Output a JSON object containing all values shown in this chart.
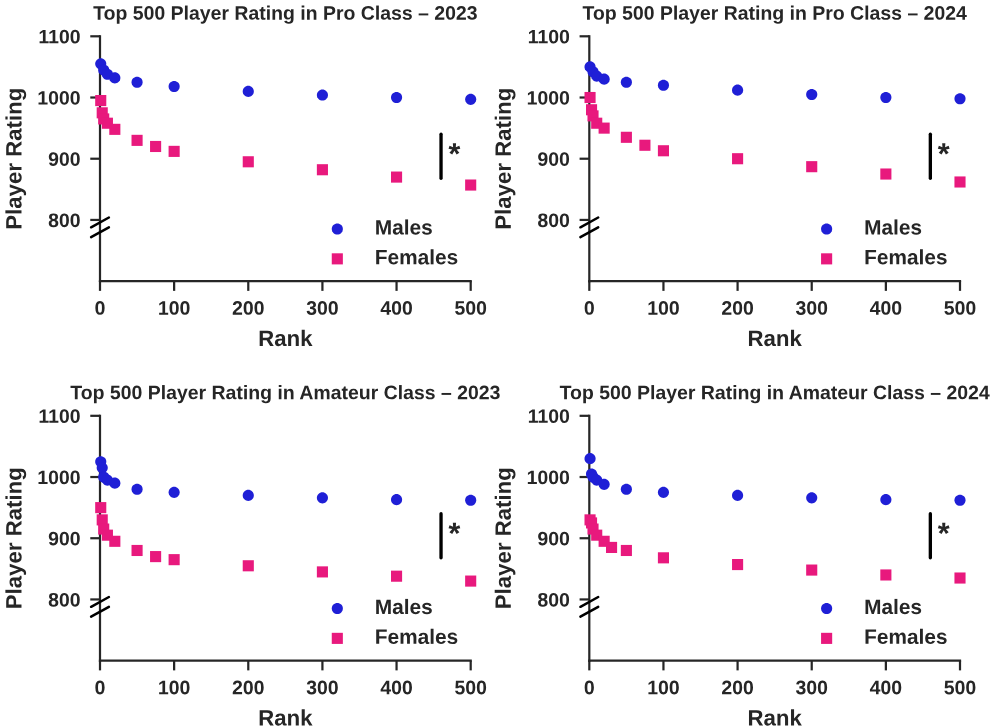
{
  "chart_data": [
    {
      "type": "scatter",
      "title": "Top 500 Player Rating in Pro Class – 2023",
      "xlabel": "Rank",
      "ylabel": "Player Rating",
      "xlim": [
        0,
        500
      ],
      "xticks": [
        0,
        100,
        200,
        300,
        400,
        500
      ],
      "ylim": [
        700,
        1100
      ],
      "yticks": [
        800,
        900,
        1000,
        1100
      ],
      "grid": false,
      "legend": "bottom right",
      "annotations": [
        "*"
      ],
      "series": [
        {
          "name": "Males",
          "color": "#1f1fd6",
          "marker": "circle",
          "x": [
            1,
            5,
            10,
            20,
            50,
            100,
            200,
            300,
            400,
            500
          ],
          "values": [
            1055,
            1045,
            1038,
            1032,
            1025,
            1018,
            1010,
            1004,
            1000,
            997
          ]
        },
        {
          "name": "Females",
          "color": "#e8197d",
          "marker": "square",
          "x": [
            1,
            3,
            5,
            10,
            20,
            50,
            75,
            100,
            200,
            300,
            400,
            500
          ],
          "values": [
            995,
            975,
            965,
            958,
            948,
            930,
            920,
            912,
            895,
            882,
            870,
            857
          ]
        }
      ]
    },
    {
      "type": "scatter",
      "title": "Top 500 Player Rating in Pro Class – 2024",
      "xlabel": "Rank",
      "ylabel": "Player Rating",
      "xlim": [
        0,
        500
      ],
      "xticks": [
        0,
        100,
        200,
        300,
        400,
        500
      ],
      "ylim": [
        700,
        1100
      ],
      "yticks": [
        800,
        900,
        1000,
        1100
      ],
      "grid": false,
      "legend": "bottom right",
      "annotations": [
        "*"
      ],
      "series": [
        {
          "name": "Males",
          "color": "#1f1fd6",
          "marker": "circle",
          "x": [
            1,
            5,
            10,
            20,
            50,
            100,
            200,
            300,
            400,
            500
          ],
          "values": [
            1050,
            1042,
            1035,
            1030,
            1025,
            1020,
            1012,
            1005,
            1000,
            998
          ]
        },
        {
          "name": "Females",
          "color": "#e8197d",
          "marker": "square",
          "x": [
            1,
            3,
            5,
            10,
            20,
            50,
            75,
            100,
            200,
            300,
            400,
            500
          ],
          "values": [
            1000,
            980,
            970,
            958,
            950,
            935,
            922,
            913,
            900,
            887,
            875,
            862
          ]
        }
      ]
    },
    {
      "type": "scatter",
      "title": "Top 500 Player Rating in Amateur Class – 2023",
      "xlabel": "Rank",
      "ylabel": "Player Rating",
      "xlim": [
        0,
        500
      ],
      "xticks": [
        0,
        100,
        200,
        300,
        400,
        500
      ],
      "ylim": [
        700,
        1100
      ],
      "yticks": [
        800,
        900,
        1000,
        1100
      ],
      "grid": false,
      "legend": "bottom right",
      "annotations": [
        "*"
      ],
      "series": [
        {
          "name": "Males",
          "color": "#1f1fd6",
          "marker": "circle",
          "x": [
            1,
            3,
            5,
            10,
            20,
            50,
            100,
            200,
            300,
            400,
            500
          ],
          "values": [
            1025,
            1015,
            1000,
            995,
            990,
            980,
            975,
            970,
            966,
            963,
            962
          ]
        },
        {
          "name": "Females",
          "color": "#e8197d",
          "marker": "square",
          "x": [
            1,
            3,
            5,
            10,
            20,
            50,
            75,
            100,
            200,
            300,
            400,
            500
          ],
          "values": [
            950,
            930,
            915,
            905,
            895,
            880,
            870,
            865,
            855,
            845,
            838,
            830
          ]
        }
      ]
    },
    {
      "type": "scatter",
      "title": "Top 500 Player Rating in Amateur Class – 2024",
      "xlabel": "Rank",
      "ylabel": "Player Rating",
      "xlim": [
        0,
        500
      ],
      "xticks": [
        0,
        100,
        200,
        300,
        400,
        500
      ],
      "ylim": [
        700,
        1100
      ],
      "yticks": [
        800,
        900,
        1000,
        1100
      ],
      "grid": false,
      "legend": "bottom right",
      "annotations": [
        "*"
      ],
      "series": [
        {
          "name": "Males",
          "color": "#1f1fd6",
          "marker": "circle",
          "x": [
            1,
            3,
            5,
            10,
            20,
            50,
            100,
            200,
            300,
            400,
            500
          ],
          "values": [
            1030,
            1005,
            1000,
            995,
            988,
            980,
            975,
            970,
            966,
            963,
            962
          ]
        },
        {
          "name": "Females",
          "color": "#e8197d",
          "marker": "square",
          "x": [
            1,
            3,
            5,
            10,
            20,
            30,
            50,
            100,
            200,
            300,
            400,
            500
          ],
          "values": [
            930,
            925,
            915,
            905,
            895,
            885,
            880,
            868,
            857,
            848,
            840,
            835
          ]
        }
      ]
    }
  ]
}
